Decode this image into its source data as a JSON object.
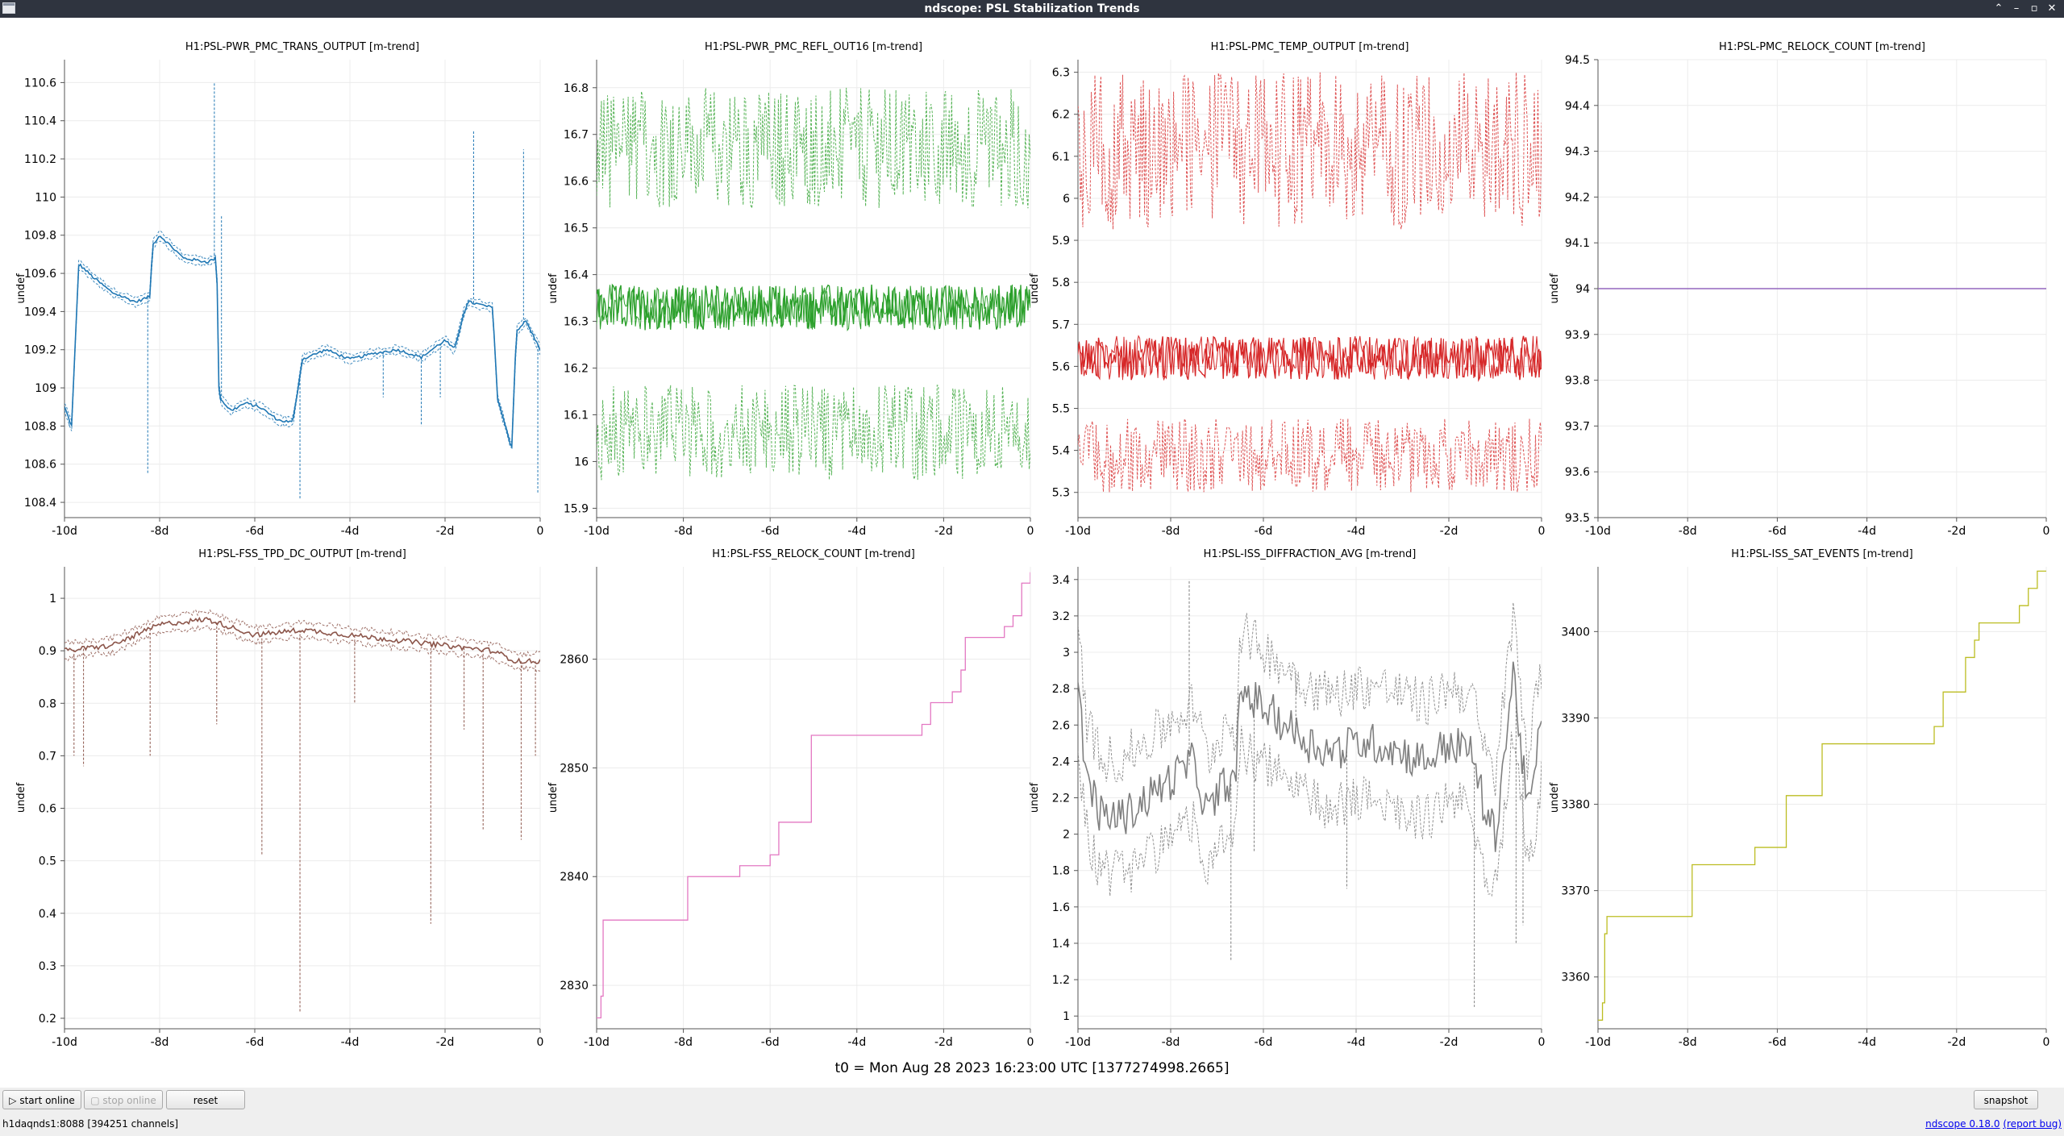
{
  "window": {
    "title": "ndscope: PSL Stabilization Trends"
  },
  "footer": {
    "t0": "t0 = Mon Aug 28 2023 16:23:00 UTC [1377274998.2665]",
    "start_online": "start online",
    "stop_online": "stop online",
    "reset": "reset",
    "snapshot": "snapshot",
    "server": "h1daqnds1:8088  [394251 channels]",
    "version": "ndscope 0.18.0",
    "report_bug": "(report bug)"
  },
  "chart_data": [
    {
      "type": "line",
      "title": "H1:PSL-PWR_PMC_TRANS_OUTPUT [m-trend]",
      "ylabel": "undef",
      "color": "#1f77b4",
      "style": "trend",
      "ylim": [
        108.32,
        110.72
      ],
      "yticks": [
        108.4,
        108.6,
        108.8,
        109,
        109.2,
        109.4,
        109.6,
        109.8,
        110,
        110.2,
        110.4,
        110.6
      ],
      "xticks": [
        "-10d",
        "-8d",
        "-6d",
        "-4d",
        "-2d",
        "0"
      ],
      "xlim": [
        -10,
        0
      ],
      "spread": 0.03,
      "x": [
        -10,
        -9.85,
        -9.7,
        -9.4,
        -9,
        -8.5,
        -8.2,
        -8.15,
        -8,
        -7.5,
        -7,
        -6.8,
        -6.75,
        -6.5,
        -6.2,
        -5.9,
        -5.5,
        -5.2,
        -5,
        -4.5,
        -4,
        -3.5,
        -3,
        -2.5,
        -2,
        -1.8,
        -1.6,
        -1.5,
        -1,
        -0.9,
        -0.6,
        -0.5,
        -0.3,
        0
      ],
      "values": [
        108.9,
        108.8,
        109.65,
        109.58,
        109.5,
        109.45,
        109.48,
        109.75,
        109.8,
        109.68,
        109.66,
        109.68,
        108.95,
        108.88,
        108.92,
        108.9,
        108.83,
        108.82,
        109.15,
        109.2,
        109.15,
        109.18,
        109.2,
        109.16,
        109.25,
        109.2,
        109.4,
        109.45,
        109.42,
        108.95,
        108.68,
        109.3,
        109.35,
        109.2
      ],
      "spikes": [
        [
          -9.9,
          108.8
        ],
        [
          -8.25,
          108.55
        ],
        [
          -6.85,
          110.6
        ],
        [
          -6.7,
          109.9
        ],
        [
          -5.05,
          108.42
        ],
        [
          -3.3,
          108.95
        ],
        [
          -2.5,
          108.8
        ],
        [
          -2.1,
          108.95
        ],
        [
          -1.4,
          110.35
        ],
        [
          -0.35,
          110.25
        ],
        [
          -0.05,
          108.45
        ]
      ]
    },
    {
      "type": "line",
      "title": "H1:PSL-PWR_PMC_REFL_OUT16 [m-trend]",
      "ylabel": "undef",
      "color": "#2ca02c",
      "style": "band",
      "ylim": [
        15.88,
        16.86
      ],
      "yticks": [
        15.9,
        16,
        16.1,
        16.2,
        16.3,
        16.4,
        16.5,
        16.6,
        16.7,
        16.8
      ],
      "xticks": [
        "-10d",
        "-8d",
        "-6d",
        "-4d",
        "-2d",
        "0"
      ],
      "xlim": [
        -10,
        0
      ],
      "bandmin": 15.96,
      "bandmax": 16.8,
      "center": 16.33,
      "noise": 0.28
    },
    {
      "type": "line",
      "title": "H1:PSL-PMC_TEMP_OUTPUT [m-trend]",
      "ylabel": "undef",
      "color": "#d62728",
      "style": "band",
      "ylim": [
        5.24,
        6.33
      ],
      "yticks": [
        5.3,
        5.4,
        5.5,
        5.6,
        5.7,
        5.8,
        5.9,
        6,
        6.1,
        6.2,
        6.3
      ],
      "xticks": [
        "-10d",
        "-8d",
        "-6d",
        "-4d",
        "-2d",
        "0"
      ],
      "xlim": [
        -10,
        0
      ],
      "bandmin": 5.3,
      "bandmax": 6.3,
      "center": 5.62,
      "noise": 0.3
    },
    {
      "type": "line",
      "title": "H1:PSL-PMC_RELOCK_COUNT [m-trend]",
      "ylabel": "undef",
      "color": "#9467bd",
      "style": "flat",
      "ylim": [
        93.5,
        94.5
      ],
      "yticks": [
        93.5,
        93.6,
        93.7,
        93.8,
        93.9,
        94,
        94.1,
        94.2,
        94.3,
        94.4,
        94.5
      ],
      "xticks": [
        "-10d",
        "-8d",
        "-6d",
        "-4d",
        "-2d",
        "0"
      ],
      "xlim": [
        -10,
        0
      ],
      "x": [
        -10,
        0
      ],
      "values": [
        94,
        94
      ]
    },
    {
      "type": "line",
      "title": "H1:PSL-FSS_TPD_DC_OUTPUT [m-trend]",
      "ylabel": "undef",
      "color": "#8c564b",
      "style": "trend",
      "ylim": [
        0.18,
        1.06
      ],
      "yticks": [
        0.2,
        0.3,
        0.4,
        0.5,
        0.6,
        0.7,
        0.8,
        0.9,
        1
      ],
      "xticks": [
        "-10d",
        "-8d",
        "-6d",
        "-4d",
        "-2d",
        "0"
      ],
      "xlim": [
        -10,
        0
      ],
      "spread": 0.02,
      "x": [
        -10,
        -9,
        -8,
        -7,
        -6,
        -5,
        -4,
        -3,
        -2,
        -1,
        -0.5,
        0
      ],
      "values": [
        0.9,
        0.91,
        0.95,
        0.96,
        0.93,
        0.94,
        0.93,
        0.92,
        0.91,
        0.9,
        0.88,
        0.88
      ],
      "spikes": [
        [
          -9.8,
          0.7
        ],
        [
          -9.6,
          0.68
        ],
        [
          -8.2,
          0.7
        ],
        [
          -6.8,
          0.76
        ],
        [
          -5.85,
          0.51
        ],
        [
          -5.05,
          0.21
        ],
        [
          -3.9,
          0.8
        ],
        [
          -2.3,
          0.38
        ],
        [
          -1.6,
          0.75
        ],
        [
          -1.2,
          0.56
        ],
        [
          -0.4,
          0.54
        ],
        [
          -0.1,
          0.7
        ]
      ]
    },
    {
      "type": "line",
      "title": "H1:PSL-FSS_RELOCK_COUNT [m-trend]",
      "ylabel": "undef",
      "color": "#e377c2",
      "style": "step",
      "ylim": [
        2826,
        2868.5
      ],
      "yticks": [
        2830,
        2840,
        2850,
        2860
      ],
      "xticks": [
        "-10d",
        "-8d",
        "-6d",
        "-4d",
        "-2d",
        "0"
      ],
      "xlim": [
        -10,
        0
      ],
      "x": [
        -10,
        -9.9,
        -9.85,
        -9.8,
        -7.9,
        -7.2,
        -6.7,
        -6.0,
        -5.8,
        -5.05,
        -3.4,
        -2.5,
        -2.3,
        -1.8,
        -1.6,
        -1.5,
        -0.9,
        -0.6,
        -0.4,
        -0.2,
        0
      ],
      "values": [
        2827,
        2829,
        2836,
        2836,
        2840,
        2840,
        2841,
        2842,
        2845,
        2853,
        2853,
        2854,
        2856,
        2857,
        2859,
        2862,
        2862,
        2863,
        2864,
        2867,
        2868
      ]
    },
    {
      "type": "line",
      "title": "H1:PSL-ISS_DIFFRACTION_AVG [m-trend]",
      "ylabel": "undef",
      "color": "#7f7f7f",
      "style": "trend",
      "ylim": [
        0.93,
        3.47
      ],
      "yticks": [
        1,
        1.2,
        1.4,
        1.6,
        1.8,
        2,
        2.2,
        2.4,
        2.6,
        2.8,
        3,
        3.2,
        3.4
      ],
      "xticks": [
        "-10d",
        "-8d",
        "-6d",
        "-4d",
        "-2d",
        "0"
      ],
      "xlim": [
        -10,
        0
      ],
      "spread": 0.45,
      "x": [
        -10,
        -9.8,
        -9.5,
        -9,
        -8.5,
        -8,
        -7.5,
        -7.2,
        -7,
        -6.8,
        -6.6,
        -6.5,
        -6,
        -5.5,
        -5,
        -4.5,
        -4,
        -3.5,
        -3,
        -2.5,
        -2,
        -1.5,
        -1.2,
        -1,
        -0.6,
        -0.3,
        0
      ],
      "values": [
        2.8,
        2.3,
        2.1,
        2.1,
        2.2,
        2.3,
        2.4,
        2.1,
        2.2,
        2.3,
        2.25,
        2.8,
        2.7,
        2.6,
        2.5,
        2.45,
        2.5,
        2.5,
        2.45,
        2.4,
        2.5,
        2.45,
        2.1,
        2.0,
        2.9,
        2.1,
        2.6
      ],
      "spikes": [
        [
          -7.6,
          3.4
        ],
        [
          -6.7,
          1.3
        ],
        [
          -6.2,
          1.9
        ],
        [
          -5.3,
          2.9
        ],
        [
          -4.2,
          1.7
        ],
        [
          -1.45,
          1.05
        ],
        [
          -0.55,
          1.4
        ],
        [
          -0.4,
          1.5
        ]
      ]
    },
    {
      "type": "line",
      "title": "H1:PSL-ISS_SAT_EVENTS [m-trend]",
      "ylabel": "undef",
      "color": "#bcbd22",
      "style": "step",
      "ylim": [
        3354,
        3407.5
      ],
      "yticks": [
        3360,
        3370,
        3380,
        3390,
        3400
      ],
      "xticks": [
        "-10d",
        "-8d",
        "-6d",
        "-4d",
        "-2d",
        "0"
      ],
      "xlim": [
        -10,
        0
      ],
      "x": [
        -10,
        -9.9,
        -9.85,
        -9.8,
        -7.9,
        -6.5,
        -5.8,
        -5.0,
        -3.4,
        -2.5,
        -2.3,
        -1.8,
        -1.6,
        -1.5,
        -0.9,
        -0.6,
        -0.4,
        -0.2,
        0
      ],
      "values": [
        3355,
        3357,
        3365,
        3367,
        3373,
        3375,
        3381,
        3387,
        3387,
        3389,
        3393,
        3397,
        3399,
        3401,
        3401,
        3403,
        3405,
        3407,
        3407
      ]
    }
  ]
}
